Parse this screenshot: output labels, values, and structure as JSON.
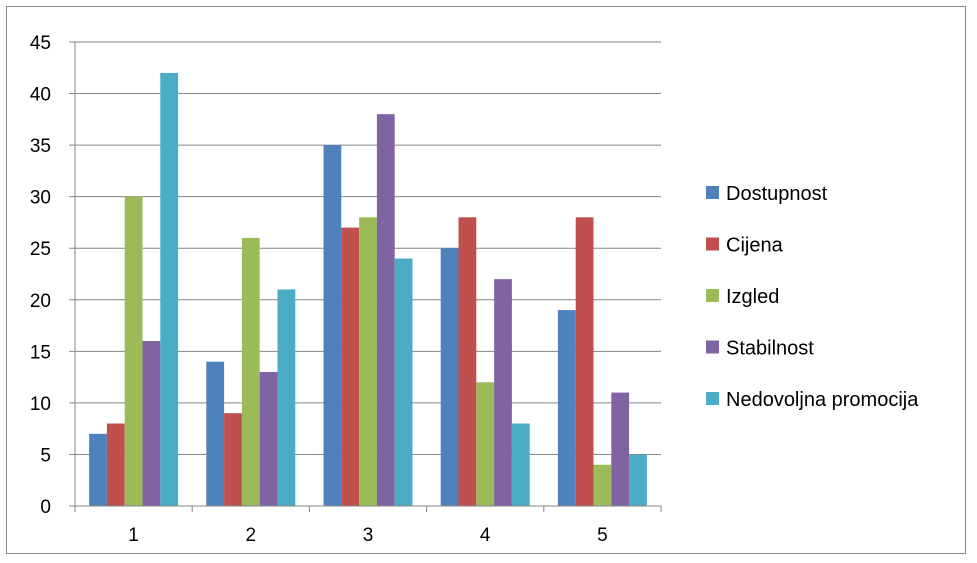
{
  "chart_data": {
    "type": "bar",
    "title": "",
    "xlabel": "",
    "ylabel": "",
    "categories": [
      "1",
      "2",
      "3",
      "4",
      "5"
    ],
    "ylim": [
      0,
      45
    ],
    "yticks": [
      0,
      5,
      10,
      15,
      20,
      25,
      30,
      35,
      40,
      45
    ],
    "grid": "horizontal",
    "legend_position": "right",
    "series": [
      {
        "name": "Dostupnost",
        "color": "#4f81bd",
        "values": [
          7,
          14,
          35,
          25,
          19
        ]
      },
      {
        "name": "Cijena",
        "color": "#c0504d",
        "values": [
          8,
          9,
          27,
          28,
          28
        ]
      },
      {
        "name": "Izgled",
        "color": "#9bbb59",
        "values": [
          30,
          26,
          28,
          12,
          4
        ]
      },
      {
        "name": "Stabilnost",
        "color": "#8064a2",
        "values": [
          16,
          13,
          38,
          22,
          11
        ]
      },
      {
        "name": "Nedovoljna promocija",
        "color": "#4bacc6",
        "values": [
          42,
          21,
          24,
          8,
          5
        ]
      }
    ]
  }
}
